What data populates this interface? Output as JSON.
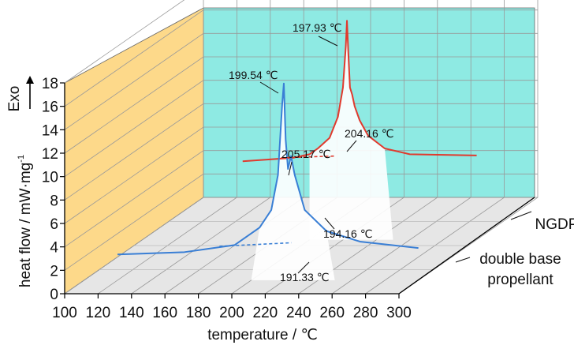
{
  "chart_data": {
    "type": "line",
    "subtype": "3d-waterfall",
    "xlabel": "temperature / ℃",
    "ylabel": "heat flow / mW·mg",
    "ylabel_sup": "-1",
    "exo_label": "Exo",
    "xlim": [
      100,
      300
    ],
    "ylim": [
      0,
      18
    ],
    "x_ticks": [
      "100",
      "120",
      "140",
      "160",
      "180",
      "200",
      "220",
      "240",
      "260",
      "280",
      "300"
    ],
    "y_ticks": [
      "0",
      "2",
      "4",
      "6",
      "8",
      "10",
      "12",
      "14",
      "16",
      "18"
    ],
    "grid": true,
    "colors": {
      "back_wall": "#8EEAE3",
      "side_wall": "#FDD98A",
      "floor": "#E6E6E6",
      "grid": "#999999"
    },
    "series": [
      {
        "name": "double base propellant",
        "color": "#3A7FD5",
        "points": [
          [
            120,
            2.2
          ],
          [
            160,
            2.4
          ],
          [
            190,
            3.0
          ],
          [
            205,
            4.5
          ],
          [
            212,
            6.0
          ],
          [
            216,
            9.0
          ],
          [
            218.5,
            15.0
          ],
          [
            219.5,
            16.8
          ],
          [
            220.6,
            12.0
          ],
          [
            222.0,
            9.5
          ],
          [
            223.8,
            10.6
          ],
          [
            226,
            9.0
          ],
          [
            232,
            6.0
          ],
          [
            245,
            4.2
          ],
          [
            265,
            3.3
          ],
          [
            300,
            2.75
          ]
        ],
        "baseline": [
          [
            181,
            2.9
          ],
          [
            224,
            3.2
          ]
        ]
      },
      {
        "name": "NGDP",
        "color": "#E03A2E",
        "points": [
          [
            160,
            6.7
          ],
          [
            190,
            7.0
          ],
          [
            200,
            7.3
          ],
          [
            205,
            7.8
          ],
          [
            212,
            8.7
          ],
          [
            217,
            10.5
          ],
          [
            220,
            13.0
          ],
          [
            221.7,
            16.5
          ],
          [
            222.4,
            18.7
          ],
          [
            223.2,
            16.0
          ],
          [
            224.2,
            13.0
          ],
          [
            225.5,
            12.4
          ],
          [
            227,
            11.4
          ],
          [
            230,
            10.2
          ],
          [
            235,
            8.9
          ],
          [
            245,
            7.8
          ],
          [
            260,
            7.3
          ],
          [
            300,
            7.2
          ]
        ],
        "baseline": [
          [
            183,
            7.0
          ],
          [
            215,
            7.15
          ]
        ]
      }
    ],
    "annotations": [
      {
        "text": "199.54 ℃"
      },
      {
        "text": "205.17 ℃"
      },
      {
        "text": "191.33 ℃"
      },
      {
        "text": "197.93 ℃"
      },
      {
        "text": "204.16 ℃"
      },
      {
        "text": "194.16 ℃"
      }
    ]
  }
}
